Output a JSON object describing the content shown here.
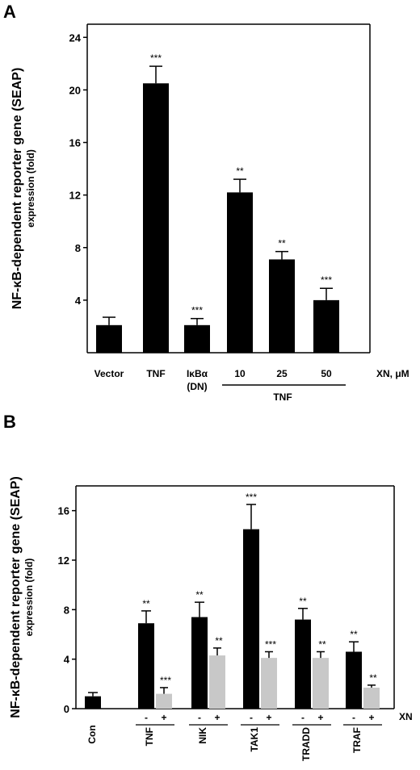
{
  "chart_data": [
    {
      "panel": "A",
      "type": "bar",
      "ylabel_line1": "NF-κB-dependent reporter gene (SEAP)",
      "ylabel_line2": "expression (fold)",
      "ylim": [
        0,
        25
      ],
      "yticks": [
        4,
        8,
        12,
        16,
        20,
        24
      ],
      "categories": [
        "Vector",
        "TNF",
        "IκBα",
        "10",
        "25",
        "50"
      ],
      "category_sublabels": [
        "",
        "",
        "(DN)",
        "",
        "",
        ""
      ],
      "group_label": "TNF",
      "axis_note": "XN, μM",
      "values": [
        2.1,
        20.5,
        2.1,
        12.2,
        7.1,
        4.0
      ],
      "errors": [
        0.6,
        1.3,
        0.5,
        1.0,
        0.6,
        0.9
      ],
      "significance": [
        "",
        "***",
        "***",
        "**",
        "**",
        "***"
      ],
      "color": "#000000"
    },
    {
      "panel": "B",
      "type": "bar",
      "ylabel_line1": "NF-κB-dependent reporter gene (SEAP)",
      "ylabel_line2": "expression (fold)",
      "ylim": [
        0,
        18
      ],
      "yticks": [
        0,
        4,
        8,
        12,
        16
      ],
      "axis_note": "XN",
      "control": {
        "label": "Con",
        "value": 1.0,
        "error": 0.3
      },
      "groups": [
        "TNF",
        "NIK",
        "TAK1",
        "TRADD",
        "TRAF"
      ],
      "xn_minus_label": "-",
      "xn_plus_label": "+",
      "series": [
        {
          "values": [
            6.9,
            7.4,
            14.5,
            7.2,
            4.6
          ],
          "errors": [
            1.0,
            1.2,
            2.0,
            0.9,
            0.8
          ],
          "significance": [
            "**",
            "**",
            "***",
            "**",
            "**"
          ],
          "color": "#000000"
        },
        {
          "values": [
            1.2,
            4.3,
            4.1,
            4.1,
            1.7
          ],
          "errors": [
            0.5,
            0.6,
            0.5,
            0.5,
            0.2
          ],
          "significance": [
            "***",
            "**",
            "***",
            "**",
            "**"
          ],
          "color": "#c8c8c8"
        }
      ]
    }
  ]
}
